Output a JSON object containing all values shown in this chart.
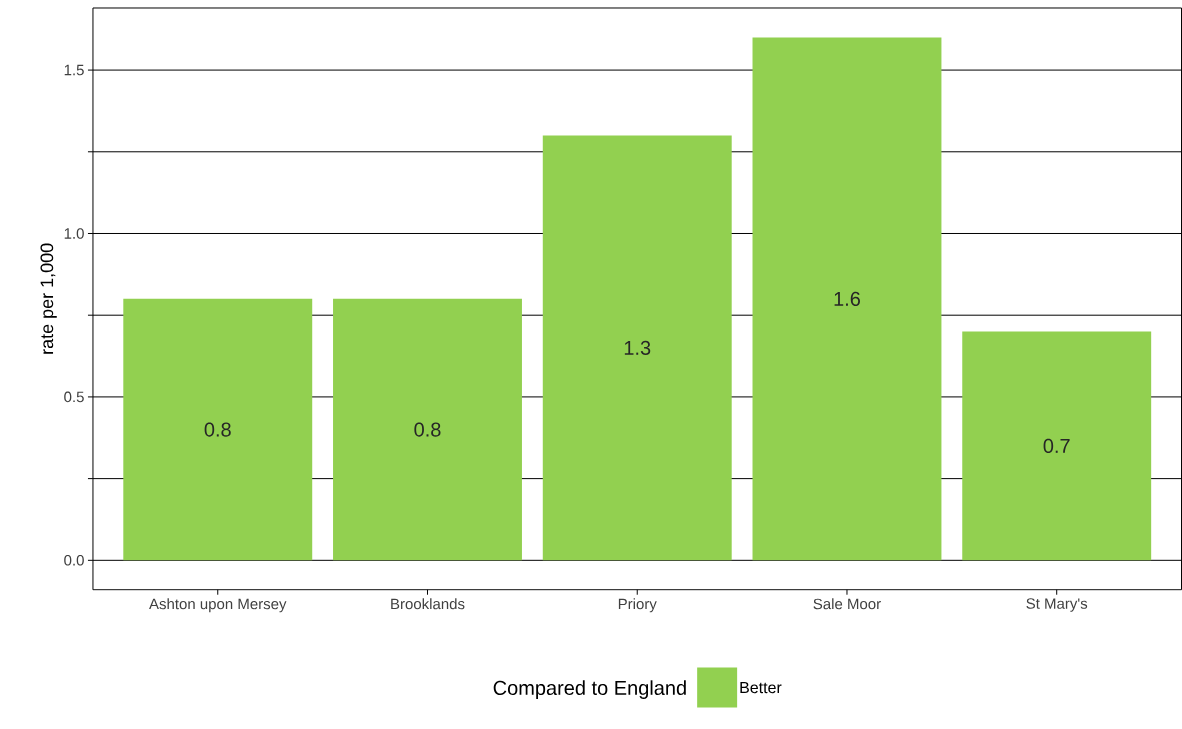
{
  "chart_data": {
    "type": "bar",
    "categories": [
      "Ashton upon Mersey",
      "Brooklands",
      "Priory",
      "Sale Moor",
      "St Mary's"
    ],
    "series": [
      {
        "name": "Better",
        "color": "#92d050",
        "values": [
          0.8,
          0.8,
          1.3,
          1.6,
          0.7
        ]
      }
    ],
    "ylabel": "rate per 1,000",
    "legend_title": "Compared to England",
    "legend": "bottom",
    "data_labels": true,
    "grid": "y",
    "ylim": [
      -0.09,
      1.69
    ],
    "yticks": [
      {
        "value": 0,
        "label": "0.0"
      },
      {
        "value": 0.25,
        "label": null
      },
      0.5,
      {
        "value": 0.75,
        "label": null
      },
      {
        "value": 1,
        "label": "1.0"
      },
      {
        "value": 1.25,
        "label": null
      },
      1.5
    ]
  }
}
